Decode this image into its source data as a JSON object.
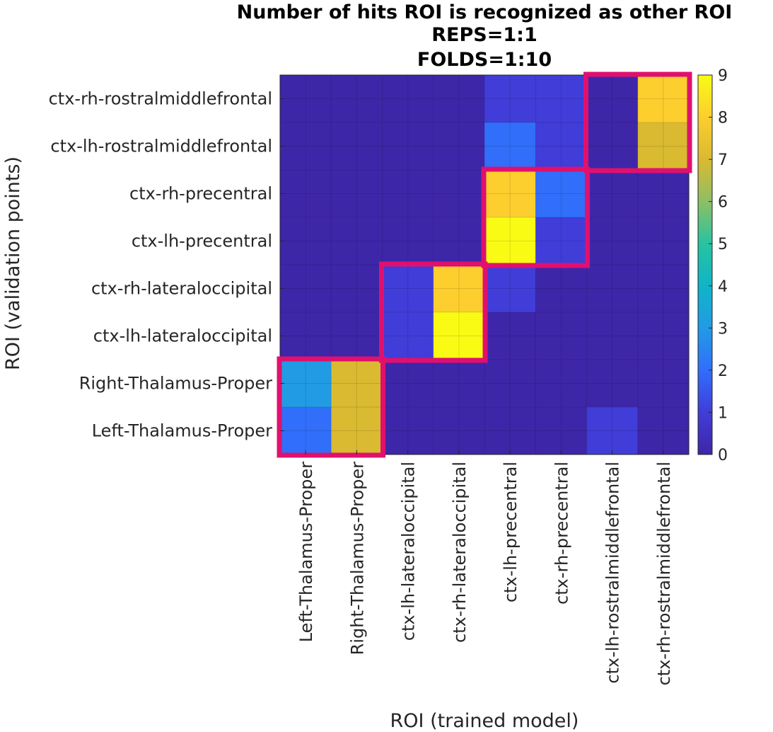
{
  "chart_data": {
    "type": "heatmap",
    "title": [
      "Number of hits ROI is recognized as other ROI",
      "REPS=1:1",
      "FOLDS=1:10"
    ],
    "xlabel": "ROI (trained model)",
    "ylabel": "ROI (validation points)",
    "x_categories": [
      "Left-Thalamus-Proper",
      "Right-Thalamus-Proper",
      "ctx-lh-lateraloccipital",
      "ctx-rh-lateraloccipital",
      "ctx-lh-precentral",
      "ctx-rh-precentral",
      "ctx-lh-rostralmiddlefrontal",
      "ctx-rh-rostralmiddlefrontal"
    ],
    "y_categories": [
      "ctx-rh-rostralmiddlefrontal",
      "ctx-lh-rostralmiddlefrontal",
      "ctx-rh-precentral",
      "ctx-lh-precentral",
      "ctx-rh-lateraloccipital",
      "ctx-lh-lateraloccipital",
      "Right-Thalamus-Proper",
      "Left-Thalamus-Proper"
    ],
    "values": [
      [
        0,
        0,
        0,
        0,
        1,
        1,
        0,
        8
      ],
      [
        0,
        0,
        0,
        0,
        2,
        1,
        0,
        7
      ],
      [
        0,
        0,
        0,
        0,
        8,
        2,
        0,
        0
      ],
      [
        0,
        0,
        0,
        0,
        9,
        1,
        0,
        0
      ],
      [
        0,
        0,
        1,
        8,
        1,
        0,
        0,
        0
      ],
      [
        0,
        0,
        1,
        9,
        0,
        0,
        0,
        0
      ],
      [
        3,
        7,
        0,
        0,
        0,
        0,
        0,
        0
      ],
      [
        2,
        7,
        0,
        0,
        0,
        0,
        1,
        0
      ]
    ],
    "clim": [
      0,
      9
    ],
    "colorbar_ticks": [
      0,
      1,
      2,
      3,
      4,
      5,
      6,
      7,
      8,
      9
    ],
    "colormap": "parula",
    "highlight_color": "#e0106e",
    "highlight_blocks": [
      {
        "cols": [
          0,
          1
        ],
        "rows": [
          6,
          7
        ]
      },
      {
        "cols": [
          2,
          3
        ],
        "rows": [
          4,
          5
        ]
      },
      {
        "cols": [
          4,
          5
        ],
        "rows": [
          2,
          3
        ]
      },
      {
        "cols": [
          6,
          7
        ],
        "rows": [
          0,
          1
        ]
      }
    ]
  }
}
